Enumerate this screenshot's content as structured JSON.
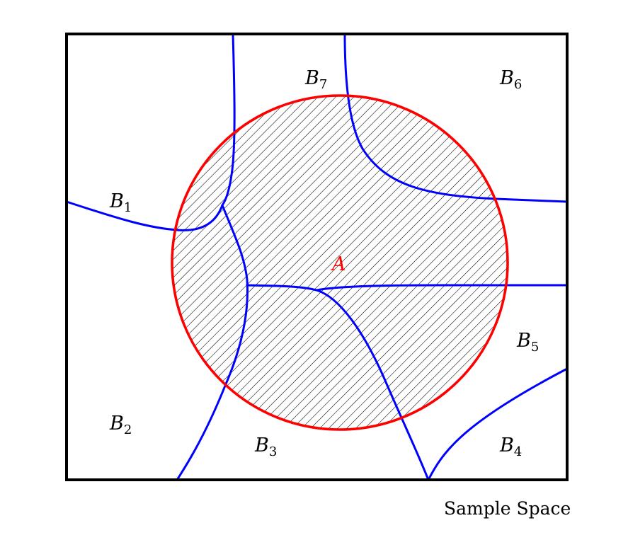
{
  "diagram": {
    "sample_space_label": "Sample Space",
    "event": {
      "letter": "A",
      "color": "#ff0000"
    },
    "partition": [
      {
        "letter": "B",
        "index": "1"
      },
      {
        "letter": "B",
        "index": "2"
      },
      {
        "letter": "B",
        "index": "3"
      },
      {
        "letter": "B",
        "index": "4"
      },
      {
        "letter": "B",
        "index": "5"
      },
      {
        "letter": "B",
        "index": "6"
      },
      {
        "letter": "B",
        "index": "7"
      }
    ],
    "partition_color": "#0000ff",
    "border_color": "#000000",
    "hatch_color": "#000000"
  }
}
